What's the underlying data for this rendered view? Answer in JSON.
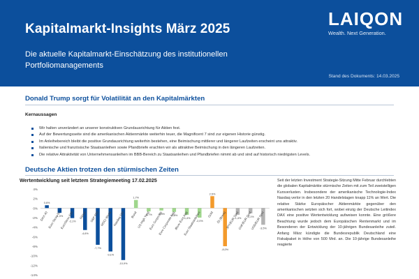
{
  "header": {
    "title": "Kapitalmarkt-Insights März 2025",
    "subtitle": "Die aktuelle Kapitalmarkt-Einschätzung des institutionellen Portfoliomanagements",
    "logo_word": "LAIQON",
    "logo_tagline": "Wealth. Next Generation.",
    "document_date": "Stand des Dokuments: 14.03.2025",
    "color": "#0c4f9c"
  },
  "section1": {
    "heading": "Donald Trump sorgt für Volatilität an den Kapitalmärkten",
    "key_label": "Kernaussagen",
    "bullets": [
      "Wir halten unverändert an unserer konstruktiven Grundausrichtung für Aktien fest.",
      "Auf der Bewertungsseite sind die amerikanischen Aktienmärkte weiterhin teuer, die Magnificent 7 sind zur eigenen Historie günstig.",
      "Im Anleihebereich bleibt die positive Grundausrichtung weiterhin bestehen, eine Beimischung mittlerer und längerer Laufzeiten erscheint uns attraktiv.",
      "Italienische und französische Staatsanleihen sowie Pfandbriefe erachten wir als attraktive Beimischung in den längeren Laufzeiten.",
      "Die relative Attraktivität von Unternehmensanleihen im BBB-Bereich zu Staatsanleihen und Pfandbriefen nimmt ab und sind auf historisch niedrigsten Levels."
    ]
  },
  "section2": {
    "heading": "Deutsche Aktien trotzen den stürmischen Zeiten",
    "body": "Seit der letzten Investment Strategie-Sitzung Mitte Februar durchlebten die globalen Kapitalmärkte stürmische Zeiten mit zum Teil zweistelligen Kursverlusten. Insbesondere der amerikanische Technologie-Index Nasdaq verlor in den letzten 20 Handelstagen knapp 11% an Wert. Die relative Stärke Europäischer Aktienmärkte gegenüber den amerikanischen setzten sich fort, wobei einzig der Deutsche Leitindex DAX eine positive Wertentwicklung aufweisen konnte. Eine größere Beachtung wurde jedoch dem Europäischen Rentenmarkt und im Besonderen der Entwicklung der 10-jährigen Bundesanleihe zuteil. Anfang März kündigte die Bundesrepublik Deutschland eine Fiskalpaket in Höhe von 500 Mrd. an. Die 10-jährige Bundesanleihe reagierte"
  },
  "chart_data": {
    "type": "bar",
    "title": "Wertentwicklung seit letztem Strategiemeeting 17.02.2025",
    "ylim": [
      -14,
      4
    ],
    "yticks": [
      "4%",
      "2%",
      "0%",
      "-2%",
      "-4%",
      "-6%",
      "-8%",
      "-10%",
      "-12%",
      "-14%"
    ],
    "grid": false,
    "bars": [
      {
        "label": "DAX 40",
        "value": 0.6,
        "display": "0,6%",
        "color": "#0c4f9c"
      },
      {
        "label": "Euro Stoxx 50",
        "value": -1.0,
        "display": "-1,0%",
        "color": "#0c4f9c"
      },
      {
        "label": "EuroStoxx 600",
        "value": -2.1,
        "display": "-2,1%",
        "color": "#0c4f9c"
      },
      {
        "label": "Nikkei",
        "value": -4.6,
        "display": "-4,6%",
        "color": "#0c4f9c"
      },
      {
        "label": "S&P 500",
        "value": -7.7,
        "display": "-7,7%",
        "color": "#0c4f9c"
      },
      {
        "label": "MSCI World",
        "value": -9.1,
        "display": "-9,1%",
        "color": "#0c4f9c"
      },
      {
        "label": "Nasdaq 100",
        "value": -10.9,
        "display": "-10,9%",
        "color": "#0c4f9c"
      },
      {
        "label": "Bund",
        "value": 1.7,
        "display": "1,7%",
        "color": "#9fd68c"
      },
      {
        "label": "US High Yield",
        "value": -0.7,
        "display": "-0,7%",
        "color": "#9fd68c"
      },
      {
        "label": "Euro Corporate",
        "value": -0.5,
        "display": "-0,5%",
        "color": "#9fd68c"
      },
      {
        "label": "Euro Corporate Agg",
        "value": -0.8,
        "display": "-0,8%",
        "color": "#9fd68c"
      },
      {
        "label": "iBoxx Euro Agg",
        "value": -1.4,
        "display": "-1,4%",
        "color": "#9fd68c"
      },
      {
        "label": "Euro Staatsanleihen",
        "value": -2.0,
        "display": "-2,0%",
        "color": "#9fd68c"
      },
      {
        "label": "Gold",
        "value": 2.5,
        "display": "2,5%",
        "color": "#f39a2b"
      },
      {
        "label": "Öl (Brent)",
        "value": -8.0,
        "display": "-8,0%",
        "color": "#f39a2b"
      },
      {
        "label": "JPY/EUR Spot",
        "value": -1.4,
        "display": "-1,4%",
        "color": "#b3b3b3"
      },
      {
        "label": "CHF/EUR Spot",
        "value": -1.1,
        "display": "-1,1%",
        "color": "#b3b3b3"
      },
      {
        "label": "USD/EUR Spot",
        "value": -3.5,
        "display": "-3,5%",
        "color": "#b3b3b3"
      }
    ]
  }
}
